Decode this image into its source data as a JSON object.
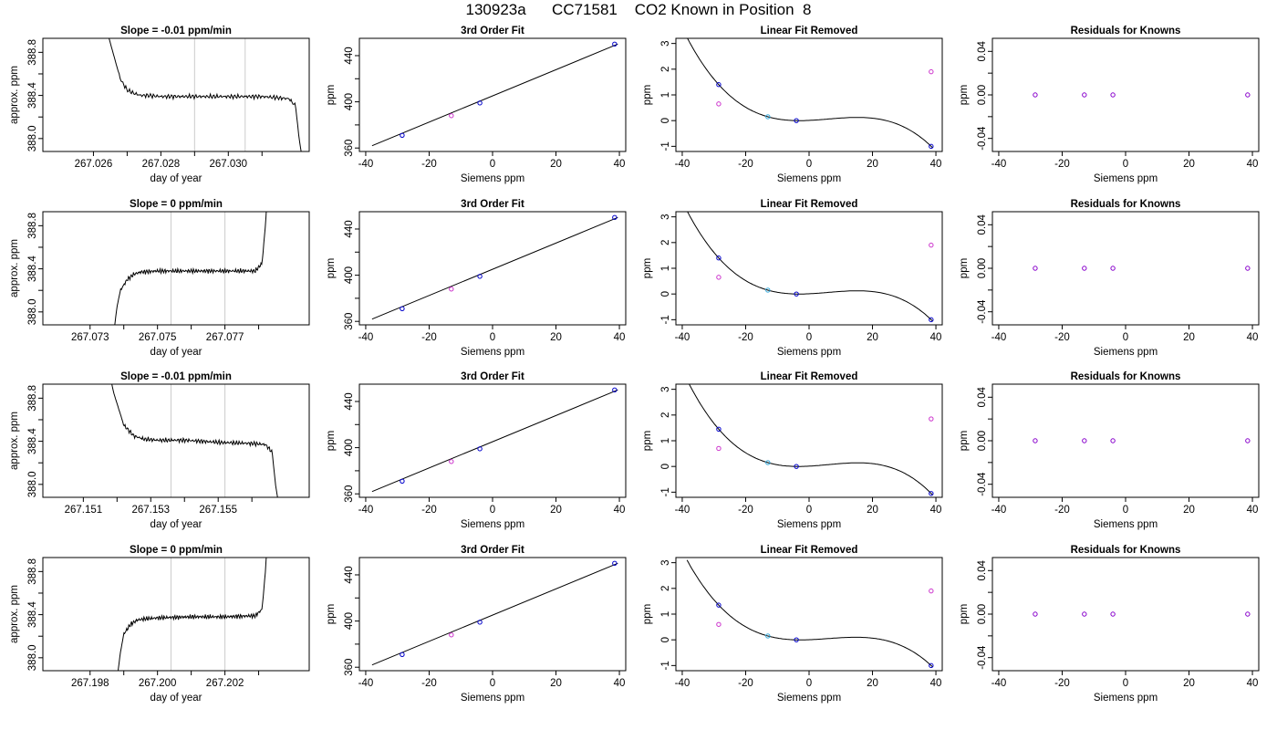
{
  "figure_title": "130923a      CC71581    CO2 Known in Position  8",
  "colors": {
    "line": "#000000",
    "gridline": "#cccccc",
    "known_point": "#0000cc",
    "cyan_point": "#33aadd",
    "magenta_point": "#cc33cc",
    "purple_point": "#8800cc"
  },
  "chart_data": [
    {
      "type": "line",
      "row": 1,
      "kind": "timeseries",
      "title": "Slope =  -0.01  ppm/min",
      "xlabel": "day of year",
      "ylabel": "approx. ppm",
      "xlim": [
        267.0245,
        267.0324
      ],
      "ylim": [
        387.88,
        388.93
      ],
      "xticks": [
        267.026,
        267.027,
        267.028,
        267.029,
        267.03,
        267.031
      ],
      "xtick_labels": [
        "267.026",
        "",
        "267.028",
        "",
        "267.030",
        ""
      ],
      "yticks": [
        388.0,
        388.2,
        388.4,
        388.6,
        388.8
      ],
      "ytick_labels": [
        "388.0",
        "",
        "388.4",
        "",
        "388.8"
      ],
      "vlines": [
        267.029,
        267.0305
      ],
      "shape": "decay",
      "x": [
        267.026,
        267.0264,
        267.0268,
        267.027,
        267.0272,
        267.0274,
        267.0276,
        267.028,
        267.029,
        267.03,
        267.031,
        267.0318,
        267.032,
        267.0321,
        267.0322
      ],
      "y": [
        389.5,
        389.0,
        388.55,
        388.45,
        388.42,
        388.4,
        388.4,
        388.39,
        388.39,
        388.39,
        388.39,
        388.37,
        388.3,
        388.0,
        387.8
      ]
    },
    {
      "type": "line",
      "row": 1,
      "kind": "fit",
      "title": "3rd Order Fit",
      "xlabel": "Siemens ppm",
      "ylabel": "ppm",
      "xlim": [
        -42,
        42
      ],
      "ylim": [
        357,
        455
      ],
      "xticks": [
        -40,
        -20,
        0,
        20,
        40
      ],
      "xtick_labels": [
        "-40",
        "-20",
        "0",
        "20",
        "40"
      ],
      "yticks": [
        360,
        380,
        400,
        420,
        440
      ],
      "ytick_labels": [
        "360",
        "",
        "400",
        "",
        "440"
      ],
      "curve": {
        "x0": -38,
        "x1": 39.5,
        "y0": 362,
        "y1": 450
      },
      "points": [
        {
          "x": -28.5,
          "y": 371,
          "color": "known_point"
        },
        {
          "x": -13,
          "y": 388,
          "color": "magenta_point"
        },
        {
          "x": -4,
          "y": 399,
          "color": "known_point"
        },
        {
          "x": 38.5,
          "y": 450,
          "color": "known_point"
        }
      ]
    },
    {
      "type": "line",
      "row": 1,
      "kind": "residual_curve",
      "title": "Linear Fit Removed",
      "xlabel": "Siemens ppm",
      "ylabel": "ppm",
      "xlim": [
        -42,
        42
      ],
      "ylim": [
        -1.2,
        3.2
      ],
      "xticks": [
        -40,
        -20,
        0,
        20,
        40
      ],
      "xtick_labels": [
        "-40",
        "-20",
        "0",
        "20",
        "40"
      ],
      "yticks": [
        -1,
        0,
        1,
        2,
        3
      ],
      "ytick_labels": [
        "-1",
        "0",
        "1",
        "2",
        "3"
      ],
      "points": [
        {
          "x": -28.5,
          "y": 1.4,
          "color": "known_point"
        },
        {
          "x": -28.5,
          "y": 0.65,
          "color": "magenta_point"
        },
        {
          "x": -13,
          "y": 0.15,
          "color": "cyan_point"
        },
        {
          "x": -4,
          "y": 0.0,
          "color": "known_point"
        },
        {
          "x": 38.5,
          "y": -1.0,
          "color": "known_point"
        },
        {
          "x": 38.5,
          "y": 1.9,
          "color": "magenta_point"
        }
      ]
    },
    {
      "type": "scatter",
      "row": 1,
      "kind": "flat",
      "title": "Residuals for Knowns",
      "xlabel": "Siemens ppm",
      "ylabel": "ppm",
      "xlim": [
        -42,
        42
      ],
      "ylim": [
        -0.052,
        0.052
      ],
      "xticks": [
        -40,
        -20,
        0,
        20,
        40
      ],
      "xtick_labels": [
        "-40",
        "-20",
        "0",
        "20",
        "40"
      ],
      "yticks": [
        -0.04,
        -0.02,
        0,
        0.02,
        0.04
      ],
      "ytick_labels": [
        "-0.04",
        "",
        "0.00",
        "",
        "0.04"
      ],
      "points": [
        {
          "x": -28.5,
          "y": 0,
          "color": "purple_point"
        },
        {
          "x": -13,
          "y": 0,
          "color": "purple_point"
        },
        {
          "x": -4,
          "y": 0,
          "color": "purple_point"
        },
        {
          "x": 38.5,
          "y": 0,
          "color": "purple_point"
        }
      ]
    },
    {
      "type": "line",
      "row": 2,
      "kind": "timeseries",
      "title": "Slope =  0  ppm/min",
      "xlabel": "day of year",
      "ylabel": "approx. ppm",
      "xlim": [
        267.0716,
        267.0795
      ],
      "ylim": [
        387.88,
        388.93
      ],
      "xticks": [
        267.073,
        267.074,
        267.075,
        267.076,
        267.077,
        267.078
      ],
      "xtick_labels": [
        "267.073",
        "",
        "267.075",
        "",
        "267.077",
        ""
      ],
      "yticks": [
        388.0,
        388.2,
        388.4,
        388.6,
        388.8
      ],
      "ytick_labels": [
        "388.0",
        "",
        "388.4",
        "",
        "388.8"
      ],
      "vlines": [
        267.0754,
        267.077
      ],
      "shape": "rise",
      "x": [
        267.0737,
        267.0738,
        267.0739,
        267.0741,
        267.0743,
        267.0745,
        267.075,
        267.076,
        267.077,
        267.0779,
        267.0781,
        267.0782,
        267.0783
      ],
      "y": [
        387.8,
        388.05,
        388.2,
        388.3,
        388.35,
        388.37,
        388.38,
        388.38,
        388.38,
        388.38,
        388.45,
        388.8,
        389.3
      ]
    },
    {
      "type": "line",
      "row": 2,
      "kind": "fit",
      "title": "3rd Order Fit",
      "xlabel": "Siemens ppm",
      "ylabel": "ppm",
      "xlim": [
        -42,
        42
      ],
      "ylim": [
        357,
        455
      ],
      "xticks": [
        -40,
        -20,
        0,
        20,
        40
      ],
      "xtick_labels": [
        "-40",
        "-20",
        "0",
        "20",
        "40"
      ],
      "yticks": [
        360,
        380,
        400,
        420,
        440
      ],
      "ytick_labels": [
        "360",
        "",
        "400",
        "",
        "440"
      ],
      "curve": {
        "x0": -38,
        "x1": 39.5,
        "y0": 362,
        "y1": 450
      },
      "points": [
        {
          "x": -28.5,
          "y": 371,
          "color": "known_point"
        },
        {
          "x": -13,
          "y": 388,
          "color": "magenta_point"
        },
        {
          "x": -4,
          "y": 399,
          "color": "known_point"
        },
        {
          "x": 38.5,
          "y": 450,
          "color": "known_point"
        }
      ]
    },
    {
      "type": "line",
      "row": 2,
      "kind": "residual_curve",
      "title": "Linear Fit Removed",
      "xlabel": "Siemens ppm",
      "ylabel": "ppm",
      "xlim": [
        -42,
        42
      ],
      "ylim": [
        -1.2,
        3.2
      ],
      "xticks": [
        -40,
        -20,
        0,
        20,
        40
      ],
      "xtick_labels": [
        "-40",
        "-20",
        "0",
        "20",
        "40"
      ],
      "yticks": [
        -1,
        0,
        1,
        2,
        3
      ],
      "ytick_labels": [
        "-1",
        "0",
        "1",
        "2",
        "3"
      ],
      "points": [
        {
          "x": -28.5,
          "y": 1.4,
          "color": "known_point"
        },
        {
          "x": -28.5,
          "y": 0.65,
          "color": "magenta_point"
        },
        {
          "x": -13,
          "y": 0.15,
          "color": "cyan_point"
        },
        {
          "x": -4,
          "y": 0.0,
          "color": "known_point"
        },
        {
          "x": 38.5,
          "y": -1.0,
          "color": "known_point"
        },
        {
          "x": 38.5,
          "y": 1.9,
          "color": "magenta_point"
        }
      ]
    },
    {
      "type": "scatter",
      "row": 2,
      "kind": "flat",
      "title": "Residuals for Knowns",
      "xlabel": "Siemens ppm",
      "ylabel": "ppm",
      "xlim": [
        -42,
        42
      ],
      "ylim": [
        -0.052,
        0.052
      ],
      "xticks": [
        -40,
        -20,
        0,
        20,
        40
      ],
      "xtick_labels": [
        "-40",
        "-20",
        "0",
        "20",
        "40"
      ],
      "yticks": [
        -0.04,
        -0.02,
        0,
        0.02,
        0.04
      ],
      "ytick_labels": [
        "-0.04",
        "",
        "0.00",
        "",
        "0.04"
      ],
      "points": [
        {
          "x": -28.5,
          "y": 0,
          "color": "purple_point"
        },
        {
          "x": -13,
          "y": 0,
          "color": "purple_point"
        },
        {
          "x": -4,
          "y": 0,
          "color": "purple_point"
        },
        {
          "x": 38.5,
          "y": 0,
          "color": "purple_point"
        }
      ]
    },
    {
      "type": "line",
      "row": 3,
      "kind": "timeseries",
      "title": "Slope =  -0.01  ppm/min",
      "xlabel": "day of year",
      "ylabel": "approx. ppm",
      "xlim": [
        267.1498,
        267.1577
      ],
      "ylim": [
        387.88,
        388.93
      ],
      "xticks": [
        267.151,
        267.152,
        267.153,
        267.154,
        267.155,
        267.156
      ],
      "xtick_labels": [
        "267.151",
        "",
        "267.153",
        "",
        "267.155",
        ""
      ],
      "yticks": [
        388.0,
        388.2,
        388.4,
        388.6,
        388.8
      ],
      "ytick_labels": [
        "388.0",
        "",
        "388.4",
        "",
        "388.8"
      ],
      "vlines": [
        267.1536,
        267.1552
      ],
      "shape": "decay",
      "x": [
        267.1516,
        267.1519,
        267.1522,
        267.1525,
        267.1528,
        267.1532,
        267.154,
        267.155,
        267.156,
        267.1564,
        267.1566,
        267.1567,
        267.1568
      ],
      "y": [
        389.3,
        388.85,
        388.55,
        388.45,
        388.42,
        388.41,
        388.41,
        388.39,
        388.38,
        388.37,
        388.3,
        388.0,
        387.8
      ]
    },
    {
      "type": "line",
      "row": 3,
      "kind": "fit",
      "title": "3rd Order Fit",
      "xlabel": "Siemens ppm",
      "ylabel": "ppm",
      "xlim": [
        -42,
        42
      ],
      "ylim": [
        357,
        455
      ],
      "xticks": [
        -40,
        -20,
        0,
        20,
        40
      ],
      "xtick_labels": [
        "-40",
        "-20",
        "0",
        "20",
        "40"
      ],
      "yticks": [
        360,
        380,
        400,
        420,
        440
      ],
      "ytick_labels": [
        "360",
        "",
        "400",
        "",
        "440"
      ],
      "curve": {
        "x0": -38,
        "x1": 39.5,
        "y0": 362,
        "y1": 450
      },
      "points": [
        {
          "x": -28.5,
          "y": 371,
          "color": "known_point"
        },
        {
          "x": -13,
          "y": 388,
          "color": "magenta_point"
        },
        {
          "x": -4,
          "y": 399,
          "color": "known_point"
        },
        {
          "x": 38.5,
          "y": 450,
          "color": "known_point"
        }
      ]
    },
    {
      "type": "line",
      "row": 3,
      "kind": "residual_curve",
      "title": "Linear Fit Removed",
      "xlabel": "Siemens ppm",
      "ylabel": "ppm",
      "xlim": [
        -42,
        42
      ],
      "ylim": [
        -1.2,
        3.2
      ],
      "xticks": [
        -40,
        -20,
        0,
        20,
        40
      ],
      "xtick_labels": [
        "-40",
        "-20",
        "0",
        "20",
        "40"
      ],
      "yticks": [
        -1,
        0,
        1,
        2,
        3
      ],
      "ytick_labels": [
        "-1",
        "0",
        "1",
        "2",
        "3"
      ],
      "points": [
        {
          "x": -28.5,
          "y": 1.45,
          "color": "known_point"
        },
        {
          "x": -28.5,
          "y": 0.7,
          "color": "magenta_point"
        },
        {
          "x": -13,
          "y": 0.15,
          "color": "cyan_point"
        },
        {
          "x": -4,
          "y": 0.0,
          "color": "known_point"
        },
        {
          "x": 38.5,
          "y": -1.05,
          "color": "known_point"
        },
        {
          "x": 38.5,
          "y": 1.85,
          "color": "magenta_point"
        }
      ]
    },
    {
      "type": "scatter",
      "row": 3,
      "kind": "flat",
      "title": "Residuals for Knowns",
      "xlabel": "Siemens ppm",
      "ylabel": "ppm",
      "xlim": [
        -42,
        42
      ],
      "ylim": [
        -0.052,
        0.052
      ],
      "xticks": [
        -40,
        -20,
        0,
        20,
        40
      ],
      "xtick_labels": [
        "-40",
        "-20",
        "0",
        "20",
        "40"
      ],
      "yticks": [
        -0.04,
        -0.02,
        0,
        0.02,
        0.04
      ],
      "ytick_labels": [
        "-0.04",
        "",
        "0.00",
        "",
        "0.04"
      ],
      "points": [
        {
          "x": -28.5,
          "y": 0,
          "color": "purple_point"
        },
        {
          "x": -13,
          "y": 0,
          "color": "purple_point"
        },
        {
          "x": -4,
          "y": 0,
          "color": "purple_point"
        },
        {
          "x": 38.5,
          "y": 0,
          "color": "purple_point"
        }
      ]
    },
    {
      "type": "line",
      "row": 4,
      "kind": "timeseries",
      "title": "Slope =  0  ppm/min",
      "xlabel": "day of year",
      "ylabel": "approx. ppm",
      "xlim": [
        267.1966,
        267.2045
      ],
      "ylim": [
        387.88,
        388.93
      ],
      "xticks": [
        267.198,
        267.199,
        267.2,
        267.201,
        267.202,
        267.203
      ],
      "xtick_labels": [
        "267.198",
        "",
        "267.200",
        "",
        "267.202",
        ""
      ],
      "yticks": [
        388.0,
        388.2,
        388.4,
        388.6,
        388.8
      ],
      "ytick_labels": [
        "388.0",
        "",
        "388.4",
        "",
        "388.8"
      ],
      "vlines": [
        267.2004,
        267.202
      ],
      "shape": "rise",
      "x": [
        267.1988,
        267.1989,
        267.199,
        267.1992,
        267.1994,
        267.1996,
        267.2,
        267.201,
        267.202,
        267.2029,
        267.2031,
        267.2032,
        267.2033
      ],
      "y": [
        387.8,
        388.05,
        388.22,
        388.31,
        388.35,
        388.36,
        388.37,
        388.38,
        388.38,
        388.39,
        388.45,
        388.8,
        389.3
      ]
    },
    {
      "type": "line",
      "row": 4,
      "kind": "fit",
      "title": "3rd Order Fit",
      "xlabel": "Siemens ppm",
      "ylabel": "ppm",
      "xlim": [
        -42,
        42
      ],
      "ylim": [
        357,
        455
      ],
      "xticks": [
        -40,
        -20,
        0,
        20,
        40
      ],
      "xtick_labels": [
        "-40",
        "-20",
        "0",
        "20",
        "40"
      ],
      "yticks": [
        360,
        380,
        400,
        420,
        440
      ],
      "ytick_labels": [
        "360",
        "",
        "400",
        "",
        "440"
      ],
      "curve": {
        "x0": -38,
        "x1": 39.5,
        "y0": 362,
        "y1": 450
      },
      "points": [
        {
          "x": -28.5,
          "y": 371,
          "color": "known_point"
        },
        {
          "x": -13,
          "y": 388,
          "color": "magenta_point"
        },
        {
          "x": -4,
          "y": 399,
          "color": "known_point"
        },
        {
          "x": 38.5,
          "y": 450,
          "color": "known_point"
        }
      ]
    },
    {
      "type": "line",
      "row": 4,
      "kind": "residual_curve",
      "title": "Linear Fit Removed",
      "xlabel": "Siemens ppm",
      "ylabel": "ppm",
      "xlim": [
        -42,
        42
      ],
      "ylim": [
        -1.2,
        3.2
      ],
      "xticks": [
        -40,
        -20,
        0,
        20,
        40
      ],
      "xtick_labels": [
        "-40",
        "-20",
        "0",
        "20",
        "40"
      ],
      "yticks": [
        -1,
        0,
        1,
        2,
        3
      ],
      "ytick_labels": [
        "-1",
        "0",
        "1",
        "2",
        "3"
      ],
      "points": [
        {
          "x": -28.5,
          "y": 1.35,
          "color": "known_point"
        },
        {
          "x": -28.5,
          "y": 0.6,
          "color": "magenta_point"
        },
        {
          "x": -13,
          "y": 0.15,
          "color": "cyan_point"
        },
        {
          "x": -4,
          "y": 0.0,
          "color": "known_point"
        },
        {
          "x": 38.5,
          "y": -1.0,
          "color": "known_point"
        },
        {
          "x": 38.5,
          "y": 1.9,
          "color": "magenta_point"
        }
      ]
    },
    {
      "type": "scatter",
      "row": 4,
      "kind": "flat",
      "title": "Residuals for Knowns",
      "xlabel": "Siemens ppm",
      "ylabel": "ppm",
      "xlim": [
        -42,
        42
      ],
      "ylim": [
        -0.052,
        0.052
      ],
      "xticks": [
        -40,
        -20,
        0,
        20,
        40
      ],
      "xtick_labels": [
        "-40",
        "-20",
        "0",
        "20",
        "40"
      ],
      "yticks": [
        -0.04,
        -0.02,
        0,
        0.02,
        0.04
      ],
      "ytick_labels": [
        "-0.04",
        "",
        "0.00",
        "",
        "0.04"
      ],
      "points": [
        {
          "x": -28.5,
          "y": 0,
          "color": "purple_point"
        },
        {
          "x": -13,
          "y": 0,
          "color": "purple_point"
        },
        {
          "x": -4,
          "y": 0,
          "color": "purple_point"
        },
        {
          "x": 38.5,
          "y": 0,
          "color": "purple_point"
        }
      ]
    }
  ]
}
